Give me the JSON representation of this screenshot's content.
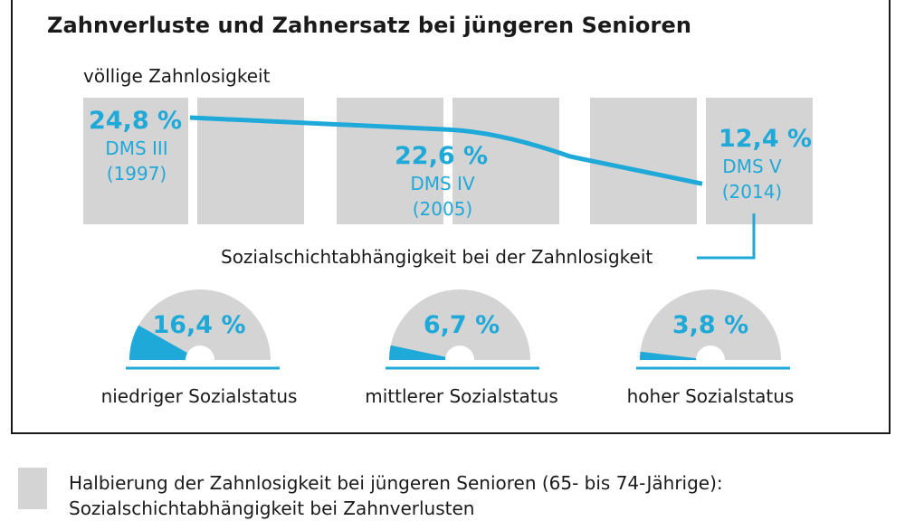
{
  "title": "Zahnverluste und Zahnersatz bei jüngeren Senioren",
  "chart_data": [
    {
      "type": "line",
      "title": "völlige Zahnlosigkeit",
      "x": [
        "1997",
        "2005",
        "2014"
      ],
      "series": [
        {
          "values": [
            24.8,
            22.6,
            12.4
          ]
        }
      ],
      "points": [
        {
          "value_label": "24,8 %",
          "study": "DMS III",
          "year": "(1997)"
        },
        {
          "value_label": "22,6 %",
          "study": "DMS IV",
          "year": "(2005)"
        },
        {
          "value_label": "12,4 %",
          "study": "DMS V",
          "year": "(2014)"
        }
      ]
    },
    {
      "type": "pie",
      "title": "Sozialschichtabhängigkeit bei der Zahnlosigkeit",
      "categories": [
        "niedriger Sozialstatus",
        "mittlerer Sozialstatus",
        "hoher Sozialstatus"
      ],
      "values": [
        16.4,
        6.7,
        3.8
      ],
      "value_labels": [
        "16,4 %",
        "6,7 %",
        "3,8 %"
      ]
    }
  ],
  "legend": {
    "line1": "Halbierung der Zahnlosigkeit bei jüngeren Senioren (65- bis 74-Jährige):",
    "line2": "Sozialschichtabhängigkeit bei Zahnverlusten"
  },
  "colors": {
    "accent": "#1fa9d8",
    "box": "#d4d4d4"
  }
}
